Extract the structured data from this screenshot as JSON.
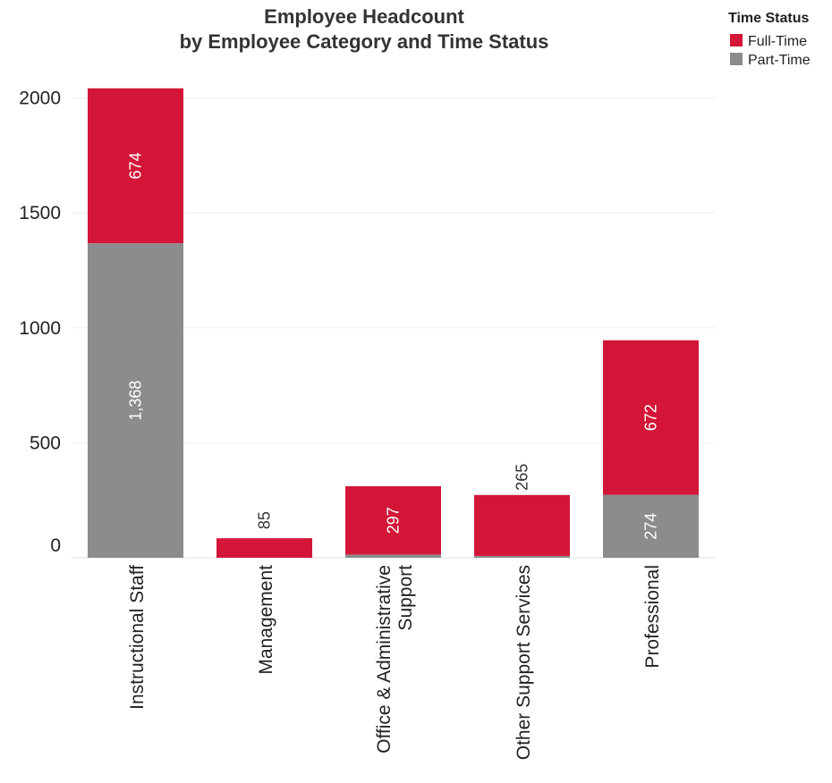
{
  "chart_data": {
    "type": "bar",
    "stacked": true,
    "title": [
      "Employee Headcount",
      "by Employee Category and Time Status"
    ],
    "xlabel": "",
    "ylabel": "",
    "ylim": [
      -50,
      2050
    ],
    "yticks": [
      0,
      500,
      1000,
      1500,
      2000
    ],
    "grid": true,
    "legend": {
      "title": "Time Status",
      "position": "top-right"
    },
    "categories": [
      [
        "Instructional Staff"
      ],
      [
        "Management"
      ],
      [
        "Office & Administrative",
        "Support"
      ],
      [
        "Other Support Services"
      ],
      [
        "Professional"
      ]
    ],
    "series": [
      {
        "name": "Part-Time",
        "color": "#8c8c8e",
        "values": [
          1368,
          0,
          14,
          8,
          274
        ],
        "labels": [
          "1,368",
          "",
          "",
          "",
          "274"
        ]
      },
      {
        "name": "Full-Time",
        "color": "#d31638",
        "values": [
          674,
          85,
          297,
          265,
          672
        ],
        "labels": [
          "674",
          "85",
          "297",
          "265",
          "672"
        ]
      }
    ]
  }
}
